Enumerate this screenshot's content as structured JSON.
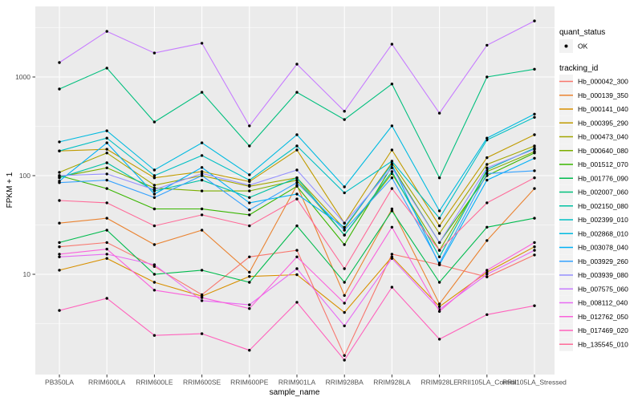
{
  "chart_data": {
    "type": "line",
    "title": "",
    "xlabel": "sample_name",
    "ylabel": "FPKM + 1",
    "y_scale": "log10",
    "y_axis_ticks": [
      "10",
      "100",
      "1000"
    ],
    "grid": "on",
    "legend_position": "right",
    "categories": [
      "PB350LA",
      "RRIM600LA",
      "RRIM600LE",
      "RRIM600SE",
      "RRIM600PE",
      "RRIM901LA",
      "RRIM928BA",
      "RRIM928LA",
      "RRIM928LE",
      "RRII105LA_Control",
      "RRII105LA_Stressed"
    ],
    "series": [
      {
        "name": "Hb_000042_300",
        "color": "#F8766D",
        "values": [
          19,
          21,
          12,
          6.2,
          15,
          17.5,
          1.5,
          16,
          12.5,
          9.4,
          15.7
        ]
      },
      {
        "name": "Hb_000139_350",
        "color": "#EA8331",
        "values": [
          33,
          37,
          20,
          28,
          10.5,
          80,
          6.1,
          46,
          5.0,
          22,
          74
        ]
      },
      {
        "name": "Hb_000141_040",
        "color": "#D89000",
        "values": [
          11,
          14.5,
          8.3,
          6.0,
          9.5,
          9.9,
          4.1,
          15,
          4.7,
          10.5,
          19
        ]
      },
      {
        "name": "Hb_000395_290",
        "color": "#C09B00",
        "values": [
          178,
          185,
          95,
          110,
          87,
          182,
          33,
          182,
          31,
          152,
          260
        ]
      },
      {
        "name": "Hb_000473_040",
        "color": "#A3A500",
        "values": [
          108,
          170,
          80,
          100,
          78,
          95,
          29,
          135,
          26,
          130,
          200
        ]
      },
      {
        "name": "Hb_000640_080",
        "color": "#7CAE00",
        "values": [
          97,
          120,
          75,
          70,
          70,
          90,
          25,
          105,
          17.5,
          110,
          175
        ]
      },
      {
        "name": "Hb_001512_070",
        "color": "#39B600",
        "values": [
          100,
          74,
          46,
          46,
          40,
          78,
          20,
          125,
          21,
          100,
          170
        ]
      },
      {
        "name": "Hb_001776_090",
        "color": "#00BB4E",
        "values": [
          21,
          28,
          10,
          11,
          8.3,
          31,
          8.3,
          44,
          8.3,
          30,
          37
        ]
      },
      {
        "name": "Hb_002007_060",
        "color": "#00BF7D",
        "values": [
          755,
          1230,
          350,
          700,
          200,
          700,
          370,
          850,
          95,
          1000,
          1200
        ]
      },
      {
        "name": "Hb_002150_080",
        "color": "#00C1A3",
        "values": [
          95,
          135,
          70,
          90,
          60,
          95,
          25,
          110,
          15,
          115,
          190
        ]
      },
      {
        "name": "Hb_002399_010",
        "color": "#00BFC4",
        "values": [
          178,
          240,
          100,
          160,
          90,
          200,
          67,
          140,
          37,
          230,
          390
        ]
      },
      {
        "name": "Hb_002868_010",
        "color": "#00BAE0",
        "values": [
          220,
          285,
          114,
          215,
          102,
          260,
          77,
          320,
          44,
          240,
          420
        ]
      },
      {
        "name": "Hb_003078_040",
        "color": "#00B0F6",
        "values": [
          88,
          215,
          65,
          121,
          53,
          65,
          30,
          130,
          12.5,
          90,
          150
        ]
      },
      {
        "name": "Hb_003929_260",
        "color": "#35A2FF",
        "values": [
          85,
          90,
          60,
          100,
          45,
          85,
          28,
          95,
          13,
          105,
          112
        ]
      },
      {
        "name": "Hb_003939_080",
        "color": "#9590FF",
        "values": [
          100,
          104,
          72,
          105,
          80,
          114,
          33,
          120,
          21,
          120,
          185
        ]
      },
      {
        "name": "Hb_007575_060",
        "color": "#C77CFF",
        "values": [
          1400,
          2900,
          1750,
          2200,
          320,
          1350,
          450,
          2150,
          430,
          2100,
          3700
        ]
      },
      {
        "name": "Hb_008112_040",
        "color": "#E76BF3",
        "values": [
          15,
          16,
          12.5,
          5.4,
          4.9,
          11.4,
          3.0,
          14.5,
          4.4,
          10,
          17.5
        ]
      },
      {
        "name": "Hb_012762_050",
        "color": "#FA62DB",
        "values": [
          16,
          18,
          6.9,
          5.8,
          4.5,
          15,
          5.1,
          30,
          4.2,
          11,
          21
        ]
      },
      {
        "name": "Hb_017469_020",
        "color": "#FF62BC",
        "values": [
          4.3,
          5.7,
          2.4,
          2.5,
          1.7,
          5.2,
          1.35,
          7.4,
          2.2,
          3.9,
          4.8
        ]
      },
      {
        "name": "Hb_135545_010",
        "color": "#FF6A98",
        "values": [
          56,
          53,
          31,
          40,
          31,
          58,
          11.4,
          74,
          17.5,
          53,
          95
        ]
      }
    ],
    "legend": {
      "quant_status_title": "quant_status",
      "quant_status_items": [
        {
          "label": "OK",
          "marker": "point"
        }
      ],
      "tracking_id_title": "tracking_id"
    },
    "style": {
      "panel_bg": "#EBEBEB",
      "grid_color": "#FFFFFF",
      "tick_label_color": "#4D4D4D",
      "tick_mark_color": "#333333",
      "axis_title_color": "#000000",
      "legend_key_bg": "#F2F2F2",
      "point_color": "#000000"
    }
  }
}
